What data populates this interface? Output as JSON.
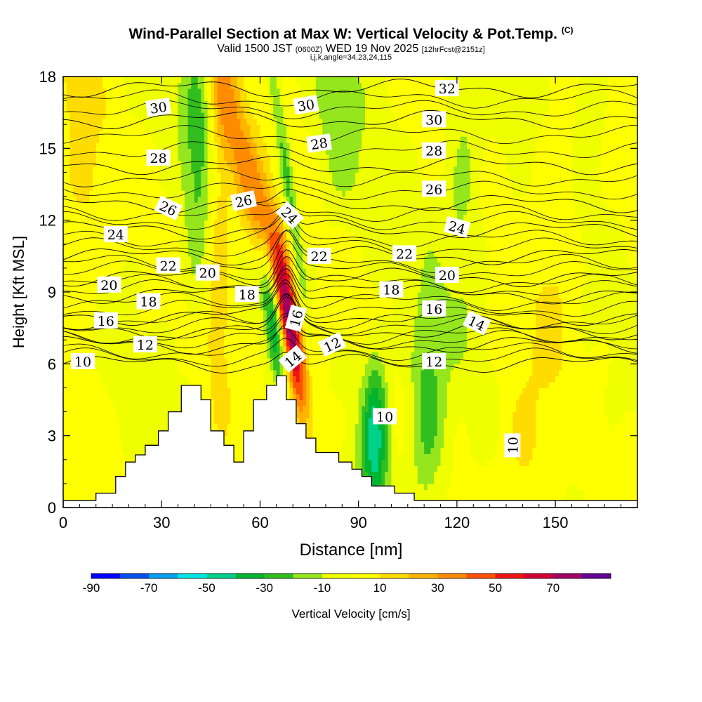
{
  "header": {
    "title": "Wind-Parallel Section at Max W: Vertical Velocity & Pot.Temp.",
    "title_unit": "(C)",
    "valid_prefix": "Valid 1500 JST",
    "valid_utc": "(0600Z)",
    "valid_date": "WED 19 Nov 2025",
    "forecast": "[12hrFcst@2151z]",
    "indices": "i,j,k,angle=34,23,24,115"
  },
  "chart_data": {
    "type": "heatmap",
    "title": "Wind-Parallel Section at Max W: Vertical Velocity & Pot.Temp.",
    "xlabel": "Distance [nm]",
    "ylabel": "Height [Kft MSL]",
    "xlim": [
      0,
      175
    ],
    "ylim": [
      0,
      18
    ],
    "x_ticks": [
      0,
      30,
      60,
      90,
      120,
      150
    ],
    "y_ticks": [
      0,
      3,
      6,
      9,
      12,
      15,
      18
    ],
    "colorbar": {
      "label": "Vertical Velocity [cm/s]",
      "tick_labels": [
        "-90",
        "-70",
        "-50",
        "-30",
        "-10",
        "10",
        "30",
        "50",
        "70"
      ],
      "bins": [
        {
          "lo": -90,
          "hi": -80,
          "color": "#0000ff"
        },
        {
          "lo": -80,
          "hi": -70,
          "color": "#0050f0"
        },
        {
          "lo": -70,
          "hi": -60,
          "color": "#00a0f0"
        },
        {
          "lo": -60,
          "hi": -50,
          "color": "#00e6e6"
        },
        {
          "lo": -50,
          "hi": -40,
          "color": "#00d28c"
        },
        {
          "lo": -40,
          "hi": -30,
          "color": "#00b432"
        },
        {
          "lo": -30,
          "hi": -20,
          "color": "#32be1e"
        },
        {
          "lo": -20,
          "hi": -10,
          "color": "#96e61e"
        },
        {
          "lo": -10,
          "hi": 0,
          "color": "#f0ff00"
        },
        {
          "lo": 0,
          "hi": 10,
          "color": "#ffff00"
        },
        {
          "lo": 10,
          "hi": 20,
          "color": "#ffdc00"
        },
        {
          "lo": 20,
          "hi": 30,
          "color": "#ffb400"
        },
        {
          "lo": 30,
          "hi": 40,
          "color": "#ff8c00"
        },
        {
          "lo": 40,
          "hi": 50,
          "color": "#ff5000"
        },
        {
          "lo": 50,
          "hi": 60,
          "color": "#f01414"
        },
        {
          "lo": 60,
          "hi": 70,
          "color": "#d20032"
        },
        {
          "lo": 70,
          "hi": 80,
          "color": "#a00064"
        },
        {
          "lo": 80,
          "hi": 90,
          "color": "#640096"
        }
      ]
    },
    "terrain_kft": [
      [
        0,
        0.3
      ],
      [
        10,
        0.3
      ],
      [
        10,
        0.6
      ],
      [
        16,
        0.6
      ],
      [
        16,
        1.3
      ],
      [
        19,
        1.3
      ],
      [
        19,
        1.9
      ],
      [
        22,
        1.9
      ],
      [
        22,
        2.2
      ],
      [
        25,
        2.2
      ],
      [
        25,
        2.6
      ],
      [
        29,
        2.6
      ],
      [
        29,
        3.2
      ],
      [
        32,
        3.2
      ],
      [
        32,
        4.0
      ],
      [
        36,
        4.0
      ],
      [
        36,
        5.1
      ],
      [
        42,
        5.1
      ],
      [
        42,
        4.5
      ],
      [
        45,
        4.5
      ],
      [
        45,
        3.2
      ],
      [
        49,
        3.2
      ],
      [
        49,
        2.6
      ],
      [
        52,
        2.6
      ],
      [
        52,
        1.9
      ],
      [
        55,
        1.9
      ],
      [
        55,
        3.2
      ],
      [
        58,
        3.2
      ],
      [
        58,
        4.5
      ],
      [
        62,
        4.5
      ],
      [
        62,
        5.1
      ],
      [
        65,
        5.1
      ],
      [
        65,
        5.5
      ],
      [
        68,
        5.5
      ],
      [
        68,
        4.5
      ],
      [
        71,
        4.5
      ],
      [
        71,
        3.5
      ],
      [
        74,
        3.5
      ],
      [
        74,
        2.9
      ],
      [
        77,
        2.9
      ],
      [
        77,
        2.3
      ],
      [
        84,
        2.3
      ],
      [
        84,
        1.9
      ],
      [
        88,
        1.9
      ],
      [
        88,
        1.6
      ],
      [
        91,
        1.6
      ],
      [
        91,
        1.3
      ],
      [
        94,
        1.3
      ],
      [
        94,
        0.9
      ],
      [
        101,
        0.9
      ],
      [
        101,
        0.6
      ],
      [
        107,
        0.6
      ],
      [
        107,
        0.3
      ],
      [
        175,
        0.3
      ]
    ],
    "velocity_cells": [
      {
        "x": 60,
        "z": 12,
        "w": 40,
        "sx": 4,
        "sz": 6,
        "tilt": -2
      },
      {
        "x": 69,
        "z": 7.5,
        "w": 60,
        "sx": 2,
        "sz": 2.5,
        "tilt": -1
      },
      {
        "x": 64,
        "z": 8,
        "w": -50,
        "sx": 2,
        "sz": 2,
        "tilt": -1
      },
      {
        "x": 68,
        "z": 14,
        "w": -25,
        "sx": 1.5,
        "sz": 6,
        "tilt": -1
      },
      {
        "x": 95,
        "z": 3,
        "w": -45,
        "sx": 3,
        "sz": 2.5,
        "tilt": 0
      },
      {
        "x": 111,
        "z": 4,
        "w": -28,
        "sx": 4,
        "sz": 3,
        "tilt": 0
      },
      {
        "x": 42,
        "z": 15,
        "w": -25,
        "sx": 4,
        "sz": 5,
        "tilt": 0
      },
      {
        "x": 47,
        "z": 12,
        "w": 25,
        "sx": 3,
        "sz": 5,
        "tilt": 0
      },
      {
        "x": 84,
        "z": 16,
        "w": -15,
        "sx": 5,
        "sz": 3,
        "tilt": 0
      },
      {
        "x": 122,
        "z": 14,
        "w": -15,
        "sx": 4,
        "sz": 4,
        "tilt": 0
      },
      {
        "x": 160,
        "z": 17,
        "w": -15,
        "sx": 3,
        "sz": 2,
        "tilt": 0
      },
      {
        "x": 140,
        "z": 2,
        "w": 15,
        "sx": 6,
        "sz": 3,
        "tilt": 0
      },
      {
        "x": 5,
        "z": 14,
        "w": 12,
        "sx": 5,
        "sz": 6,
        "tilt": 0
      },
      {
        "x": 150,
        "z": 12,
        "w": 12,
        "sx": 5,
        "sz": 4,
        "tilt": 0
      }
    ],
    "theta_contours": [
      {
        "label": "10",
        "z": 6.0
      },
      {
        "label": "12",
        "z": 6.8
      },
      {
        "label": "14",
        "z": 7.4
      },
      {
        "label": "16",
        "z": 8.0
      },
      {
        "label": "18",
        "z": 8.9
      },
      {
        "label": "20",
        "z": 9.6
      },
      {
        "label": "22",
        "z": 10.5
      },
      {
        "label": "24",
        "z": 11.6
      },
      {
        "label": "26",
        "z": 12.7
      },
      {
        "label": "28",
        "z": 14.3
      },
      {
        "label": "30",
        "z": 16.2
      },
      {
        "label": "32",
        "z": 17.5
      }
    ],
    "contour_labels": [
      {
        "text": "30",
        "x": 29,
        "z": 16.7,
        "angle": -8
      },
      {
        "text": "30",
        "x": 74,
        "z": 16.8,
        "angle": -10
      },
      {
        "text": "32",
        "x": 117,
        "z": 17.5,
        "angle": 0
      },
      {
        "text": "30",
        "x": 113,
        "z": 16.2,
        "angle": 0
      },
      {
        "text": "28",
        "x": 29,
        "z": 14.6,
        "angle": 0
      },
      {
        "text": "28",
        "x": 78,
        "z": 15.2,
        "angle": -8
      },
      {
        "text": "28",
        "x": 113,
        "z": 14.9,
        "angle": 0
      },
      {
        "text": "26",
        "x": 113,
        "z": 13.3,
        "angle": 0
      },
      {
        "text": "26",
        "x": 32,
        "z": 12.5,
        "angle": 25
      },
      {
        "text": "26",
        "x": 55,
        "z": 12.8,
        "angle": -12
      },
      {
        "text": "24",
        "x": 69,
        "z": 12.2,
        "angle": 45
      },
      {
        "text": "24",
        "x": 120,
        "z": 11.7,
        "angle": 15
      },
      {
        "text": "24",
        "x": 16,
        "z": 11.4,
        "angle": 0
      },
      {
        "text": "22",
        "x": 78,
        "z": 10.5,
        "angle": 0
      },
      {
        "text": "22",
        "x": 104,
        "z": 10.6,
        "angle": 0
      },
      {
        "text": "22",
        "x": 32,
        "z": 10.1,
        "angle": 0
      },
      {
        "text": "20",
        "x": 44,
        "z": 9.8,
        "angle": 0
      },
      {
        "text": "20",
        "x": 117,
        "z": 9.7,
        "angle": 0
      },
      {
        "text": "20",
        "x": 14,
        "z": 9.3,
        "angle": 0
      },
      {
        "text": "18",
        "x": 56,
        "z": 8.9,
        "angle": 0
      },
      {
        "text": "18",
        "x": 100,
        "z": 9.1,
        "angle": 0
      },
      {
        "text": "18",
        "x": 26,
        "z": 8.6,
        "angle": 0
      },
      {
        "text": "16",
        "x": 71,
        "z": 7.9,
        "angle": -75
      },
      {
        "text": "16",
        "x": 113,
        "z": 8.3,
        "angle": 0
      },
      {
        "text": "16",
        "x": 13,
        "z": 7.8,
        "angle": 0
      },
      {
        "text": "14",
        "x": 126,
        "z": 7.7,
        "angle": 25
      },
      {
        "text": "14",
        "x": 70,
        "z": 6.2,
        "angle": -40
      },
      {
        "text": "12",
        "x": 25,
        "z": 6.8,
        "angle": 0
      },
      {
        "text": "12",
        "x": 82,
        "z": 6.8,
        "angle": -25
      },
      {
        "text": "12",
        "x": 113,
        "z": 6.1,
        "angle": 0
      },
      {
        "text": "10",
        "x": 6,
        "z": 6.1,
        "angle": 0
      },
      {
        "text": "10",
        "x": 98,
        "z": 3.8,
        "angle": 0
      },
      {
        "text": "10",
        "x": 137,
        "z": 2.6,
        "angle": -90
      }
    ]
  }
}
